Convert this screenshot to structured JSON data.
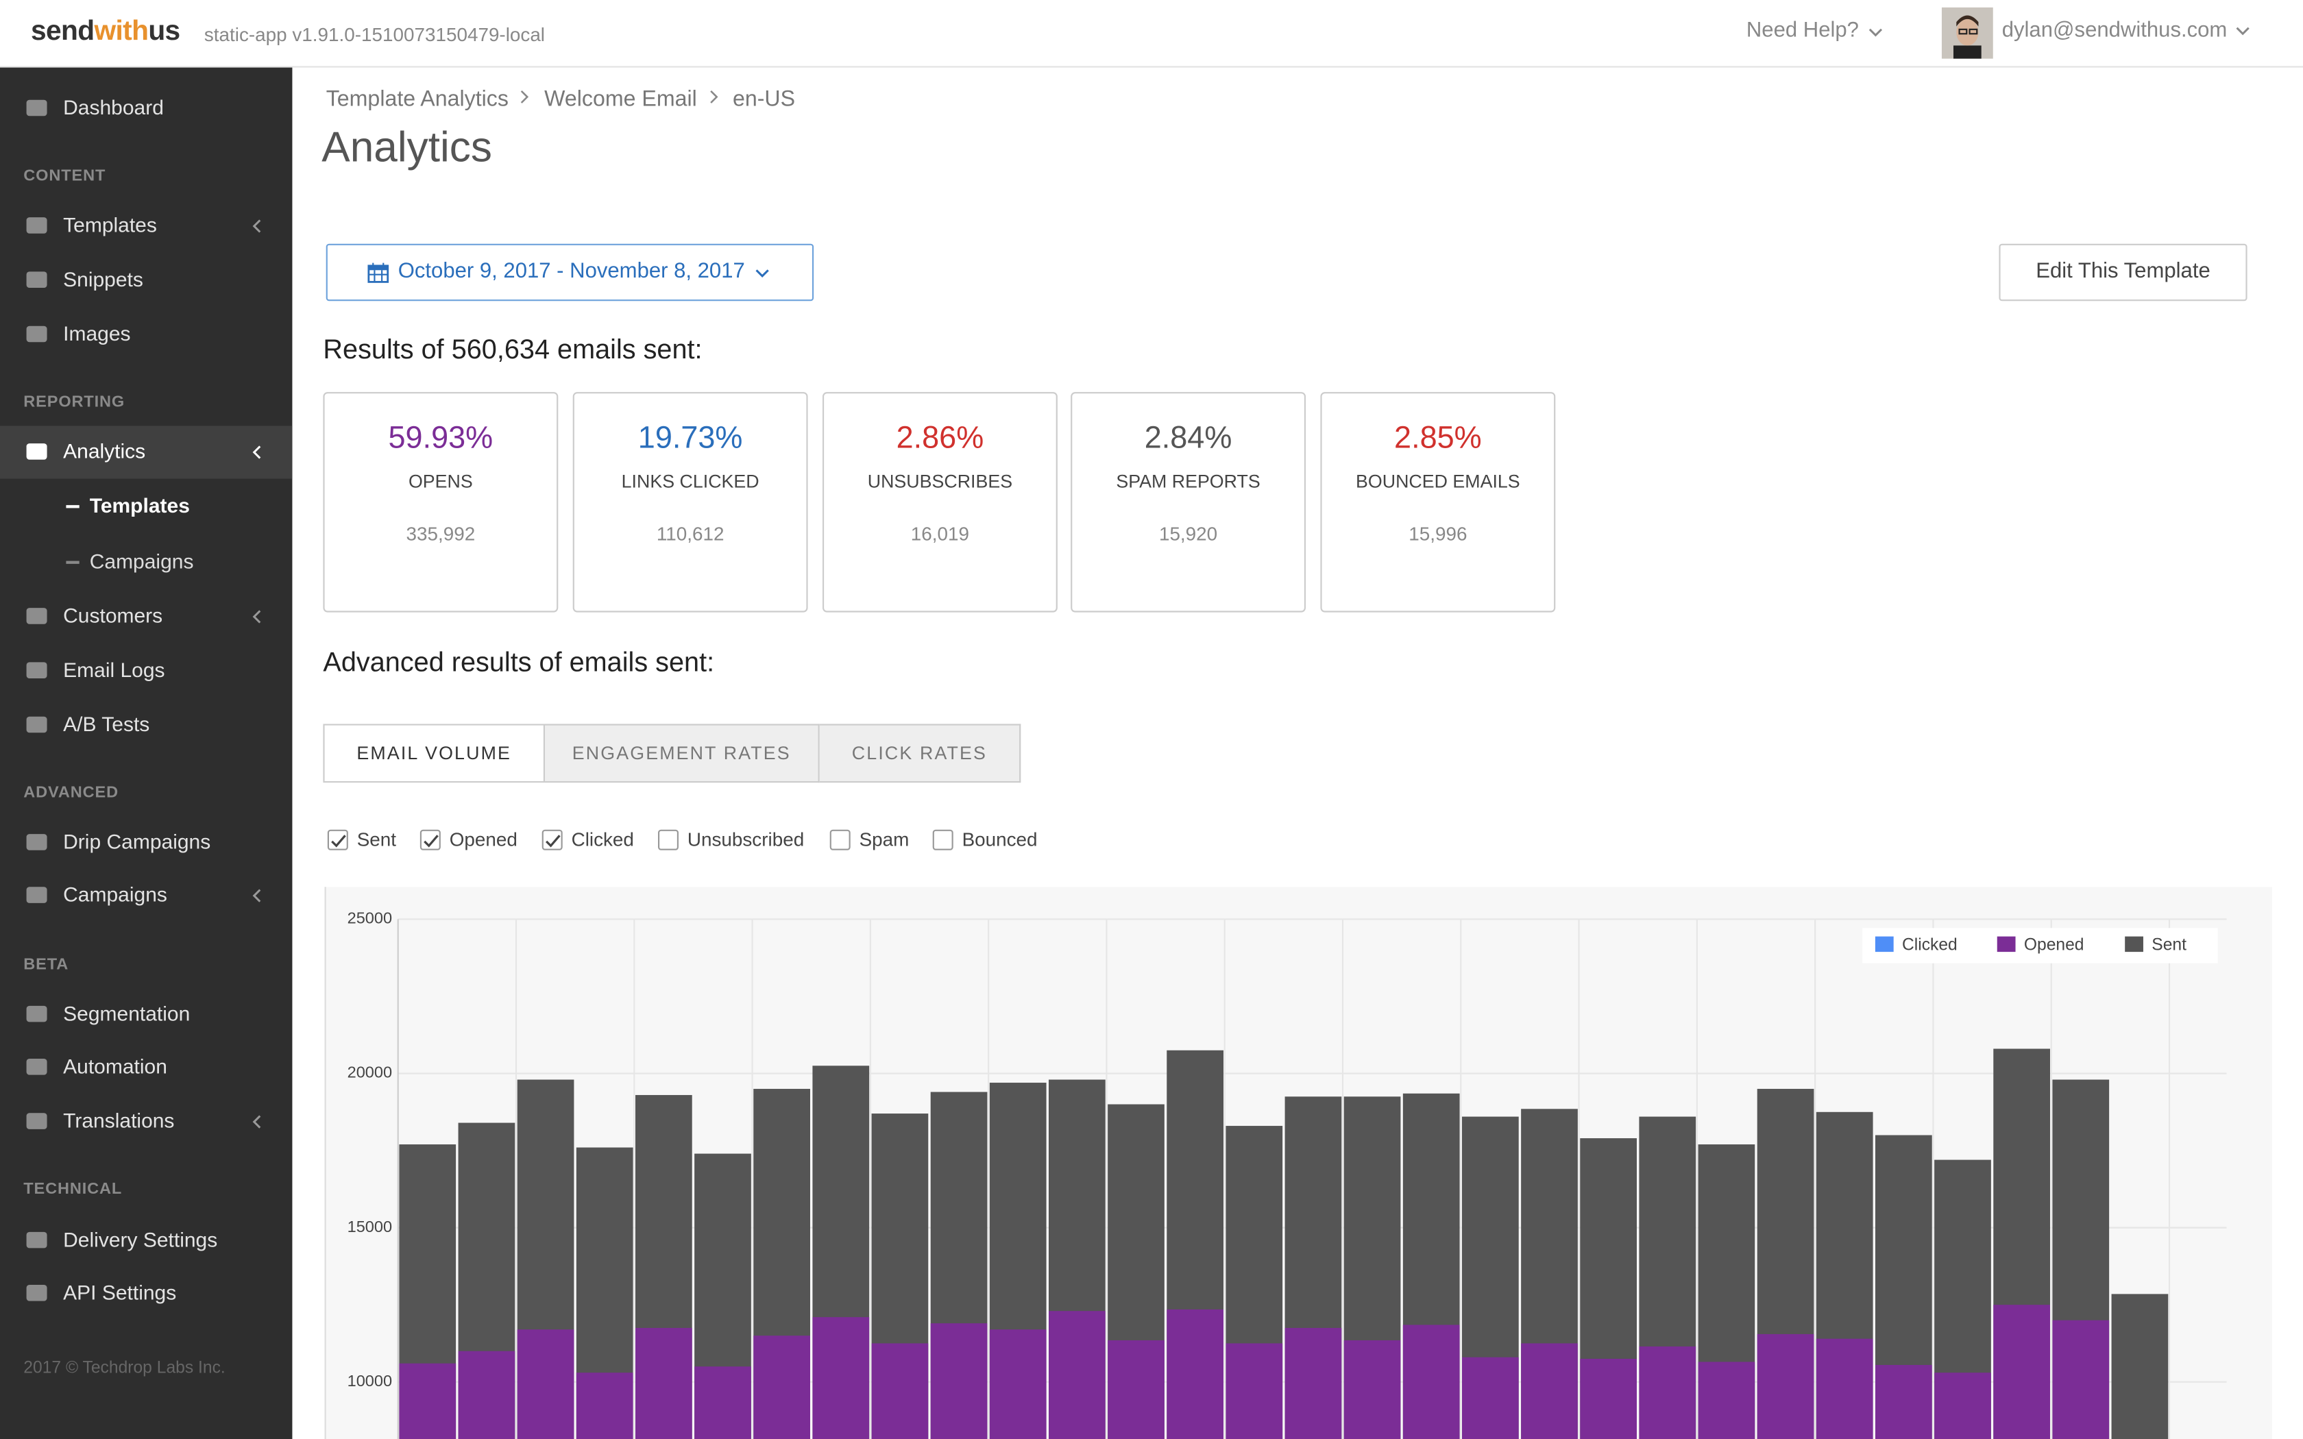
{
  "header": {
    "brand": [
      "send",
      "with",
      "us"
    ],
    "version": "static-app v1.91.0-1510073150479-local",
    "help": "Need Help?",
    "user": "dylan@sendwithus.com"
  },
  "sidebar": {
    "nav": [
      {
        "label": "Dashboard"
      },
      {
        "heading": "CONTENT"
      },
      {
        "label": "Templates",
        "expand": true
      },
      {
        "label": "Snippets"
      },
      {
        "label": "Images"
      },
      {
        "heading": "REPORTING"
      },
      {
        "label": "Analytics",
        "expand": true,
        "active": true
      },
      {
        "label": "Templates",
        "sub": true,
        "active": true
      },
      {
        "label": "Campaigns",
        "sub": true
      },
      {
        "label": "Customers",
        "expand": true
      },
      {
        "label": "Email Logs"
      },
      {
        "label": "A/B Tests"
      },
      {
        "heading": "ADVANCED"
      },
      {
        "label": "Drip Campaigns"
      },
      {
        "label": "Campaigns",
        "expand": true
      },
      {
        "heading": "BETA"
      },
      {
        "label": "Segmentation"
      },
      {
        "label": "Automation"
      },
      {
        "label": "Translations",
        "expand": true
      },
      {
        "heading": "TECHNICAL"
      },
      {
        "label": "Delivery Settings"
      },
      {
        "label": "API Settings"
      }
    ],
    "footer": "2017 © Techdrop Labs Inc."
  },
  "breadcrumb": [
    "Template Analytics",
    "Welcome Email",
    "en-US"
  ],
  "page_title": "Analytics",
  "date_range": "October 9, 2017 - November 8, 2017",
  "edit_button": "Edit This Template",
  "results_heading": "Results of 560,634 emails sent:",
  "stats": [
    {
      "value": "59.93%",
      "label": "OPENS",
      "count": "335,992",
      "color": "#7b2d96"
    },
    {
      "value": "19.73%",
      "label": "LINKS CLICKED",
      "count": "110,612",
      "color": "#2a6ebb"
    },
    {
      "value": "2.86%",
      "label": "UNSUBSCRIBES",
      "count": "16,019",
      "color": "#d0312d"
    },
    {
      "value": "2.84%",
      "label": "SPAM REPORTS",
      "count": "15,920",
      "color": "#555555"
    },
    {
      "value": "2.85%",
      "label": "BOUNCED EMAILS",
      "count": "15,996",
      "color": "#d0312d"
    }
  ],
  "advanced_heading": "Advanced results of emails sent:",
  "tabs": {
    "items": [
      "EMAIL VOLUME",
      "ENGAGEMENT RATES",
      "CLICK RATES"
    ],
    "active": 0
  },
  "filters": [
    {
      "label": "Sent",
      "checked": true
    },
    {
      "label": "Opened",
      "checked": true
    },
    {
      "label": "Clicked",
      "checked": true
    },
    {
      "label": "Unsubscribed",
      "checked": false
    },
    {
      "label": "Spam",
      "checked": false
    },
    {
      "label": "Bounced",
      "checked": false
    }
  ],
  "chart_data": {
    "type": "bar",
    "categories": [
      null,
      null,
      null,
      null,
      null,
      null,
      null,
      null,
      null,
      null,
      null,
      null,
      null,
      null,
      null,
      null,
      null,
      null,
      null,
      null,
      null,
      null,
      null,
      null,
      null,
      null,
      null,
      null,
      null,
      null
    ],
    "series": [
      {
        "name": "Clicked",
        "color": "#4f8ef7",
        "values": [
          null,
          null,
          null,
          null,
          null,
          null,
          null,
          null,
          null,
          null,
          null,
          null,
          null,
          null,
          null,
          null,
          null,
          null,
          null,
          null,
          null,
          null,
          null,
          null,
          null,
          null,
          null,
          null,
          null,
          null
        ]
      },
      {
        "name": "Opened",
        "color": "#7b2d96",
        "values": [
          10600,
          11000,
          11700,
          10300,
          11750,
          10500,
          11500,
          12100,
          11250,
          11900,
          11700,
          12300,
          11350,
          12350,
          11250,
          11750,
          11350,
          11850,
          10800,
          11250,
          10750,
          11150,
          10650,
          11550,
          11400,
          10550,
          10300,
          12500,
          12000,
          null
        ]
      },
      {
        "name": "Sent",
        "color": "#555555",
        "values": [
          17700,
          18400,
          19800,
          17600,
          19300,
          17400,
          19500,
          20250,
          18700,
          19400,
          19700,
          19800,
          19000,
          20750,
          18300,
          19250,
          19250,
          19350,
          18600,
          18850,
          17900,
          18600,
          17700,
          19500,
          18750,
          18000,
          17200,
          20800,
          19800,
          12850
        ]
      }
    ],
    "ylim": [
      8150,
      25000
    ],
    "yticks": [
      10000,
      15000,
      20000,
      25000
    ],
    "grid": true,
    "legend": "top-right"
  }
}
